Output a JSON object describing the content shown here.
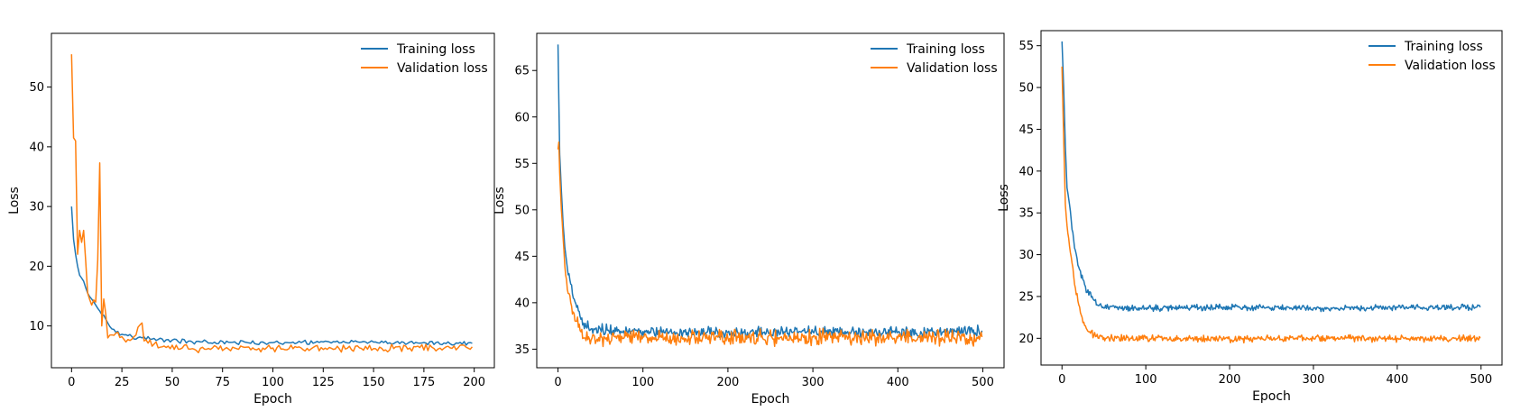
{
  "colors": {
    "training": "#1f77b4",
    "validation": "#ff7f0e",
    "axes": "#000000",
    "background": "#ffffff"
  },
  "chart_data": [
    {
      "type": "line",
      "xlabel": "Epoch",
      "ylabel": "Loss",
      "xlim": [
        -10,
        210
      ],
      "ylim": [
        3,
        59
      ],
      "xticks": [
        0,
        25,
        50,
        75,
        100,
        125,
        150,
        175,
        200
      ],
      "yticks": [
        10,
        20,
        30,
        40,
        50
      ],
      "grid": false,
      "legend_position": "top-right",
      "n_points": 200,
      "series": [
        {
          "name": "Training loss",
          "color": "#1f77b4",
          "anchors": [
            [
              0,
              30
            ],
            [
              1,
              24.5
            ],
            [
              2,
              22
            ],
            [
              3,
              20
            ],
            [
              4,
              18.5
            ],
            [
              6,
              17.5
            ],
            [
              8,
              15.5
            ],
            [
              10,
              14.5
            ],
            [
              12,
              13.5
            ],
            [
              14,
              12.5
            ],
            [
              16,
              11.8
            ],
            [
              18,
              10.5
            ],
            [
              20,
              9.5
            ],
            [
              25,
              8.6
            ],
            [
              30,
              8.2
            ],
            [
              40,
              7.8
            ],
            [
              60,
              7.3
            ],
            [
              100,
              7.2
            ],
            [
              150,
              7.3
            ],
            [
              199,
              7.1
            ]
          ],
          "noise": 0.4
        },
        {
          "name": "Validation loss",
          "color": "#ff7f0e",
          "anchors": [
            [
              0,
              55.5
            ],
            [
              1,
              41.5
            ],
            [
              2,
              41
            ],
            [
              3,
              22
            ],
            [
              4,
              26
            ],
            [
              5,
              24
            ],
            [
              6,
              26
            ],
            [
              7,
              21
            ],
            [
              8,
              15.5
            ],
            [
              10,
              13.5
            ],
            [
              12,
              14
            ],
            [
              13,
              21
            ],
            [
              14,
              37.3
            ],
            [
              15,
              10
            ],
            [
              16,
              14.5
            ],
            [
              17,
              12
            ],
            [
              18,
              8
            ],
            [
              20,
              8.5
            ],
            [
              25,
              8.2
            ],
            [
              30,
              7.8
            ],
            [
              35,
              10.5
            ],
            [
              36,
              7.5
            ],
            [
              45,
              6.5
            ],
            [
              60,
              6.2
            ],
            [
              100,
              6.3
            ],
            [
              150,
              6.2
            ],
            [
              199,
              6.5
            ]
          ],
          "noise": 0.8
        }
      ]
    },
    {
      "type": "line",
      "xlabel": "Epoch",
      "ylabel": "Loss",
      "xlim": [
        -25,
        525
      ],
      "ylim": [
        33,
        69
      ],
      "xticks": [
        0,
        100,
        200,
        300,
        400,
        500
      ],
      "yticks": [
        35,
        40,
        45,
        50,
        55,
        60,
        65
      ],
      "grid": false,
      "legend_position": "top-right",
      "n_points": 500,
      "series": [
        {
          "name": "Training loss",
          "color": "#1f77b4",
          "anchors": [
            [
              0,
              67.8
            ],
            [
              2,
              56
            ],
            [
              4,
              52
            ],
            [
              6,
              48.5
            ],
            [
              8,
              46
            ],
            [
              10,
              44.5
            ],
            [
              12,
              43
            ],
            [
              15,
              42
            ],
            [
              18,
              40.5
            ],
            [
              22,
              39.5
            ],
            [
              26,
              38.5
            ],
            [
              30,
              37.8
            ],
            [
              40,
              37.2
            ],
            [
              100,
              36.9
            ],
            [
              200,
              36.8
            ],
            [
              300,
              36.9
            ],
            [
              400,
              36.8
            ],
            [
              499,
              37.0
            ]
          ],
          "noise": 0.7
        },
        {
          "name": "Validation loss",
          "color": "#ff7f0e",
          "anchors": [
            [
              0,
              56.5
            ],
            [
              1,
              57.3
            ],
            [
              2,
              54
            ],
            [
              4,
              50
            ],
            [
              6,
              47
            ],
            [
              8,
              44
            ],
            [
              10,
              42.5
            ],
            [
              12,
              41
            ],
            [
              15,
              40
            ],
            [
              18,
              39
            ],
            [
              22,
              38
            ],
            [
              26,
              37
            ],
            [
              30,
              36.2
            ],
            [
              40,
              36.2
            ],
            [
              100,
              36.3
            ],
            [
              200,
              36.2
            ],
            [
              300,
              36.3
            ],
            [
              400,
              36.2
            ],
            [
              499,
              36.3
            ]
          ],
          "noise": 1.0
        }
      ]
    },
    {
      "type": "line",
      "xlabel": "Epoch",
      "ylabel": "Loss",
      "xlim": [
        -25,
        525
      ],
      "ylim": [
        16.8,
        56.8
      ],
      "xticks": [
        0,
        100,
        200,
        300,
        400,
        500
      ],
      "yticks": [
        20,
        25,
        30,
        35,
        40,
        45,
        50,
        55
      ],
      "grid": false,
      "legend_position": "top-right",
      "n_points": 500,
      "series": [
        {
          "name": "Training loss",
          "color": "#1f77b4",
          "anchors": [
            [
              0,
              55.5
            ],
            [
              2,
              50
            ],
            [
              4,
              43
            ],
            [
              6,
              38
            ],
            [
              9,
              36
            ],
            [
              12,
              33
            ],
            [
              16,
              30.5
            ],
            [
              20,
              28.5
            ],
            [
              25,
              27
            ],
            [
              30,
              25.5
            ],
            [
              36,
              25
            ],
            [
              42,
              24
            ],
            [
              50,
              23.6
            ],
            [
              100,
              23.6
            ],
            [
              200,
              23.7
            ],
            [
              300,
              23.6
            ],
            [
              400,
              23.7
            ],
            [
              499,
              23.7
            ]
          ],
          "noise": 0.45
        },
        {
          "name": "Validation loss",
          "color": "#ff7f0e",
          "anchors": [
            [
              0,
              52.5
            ],
            [
              2,
              44
            ],
            [
              4,
              36
            ],
            [
              6,
              33.5
            ],
            [
              9,
              31
            ],
            [
              12,
              29
            ],
            [
              16,
              26
            ],
            [
              20,
              24
            ],
            [
              24,
              22.5
            ],
            [
              30,
              21
            ],
            [
              40,
              20.2
            ],
            [
              60,
              20
            ],
            [
              100,
              20
            ],
            [
              200,
              19.9
            ],
            [
              300,
              20
            ],
            [
              400,
              20
            ],
            [
              499,
              20
            ]
          ],
          "noise": 0.5
        }
      ]
    }
  ]
}
